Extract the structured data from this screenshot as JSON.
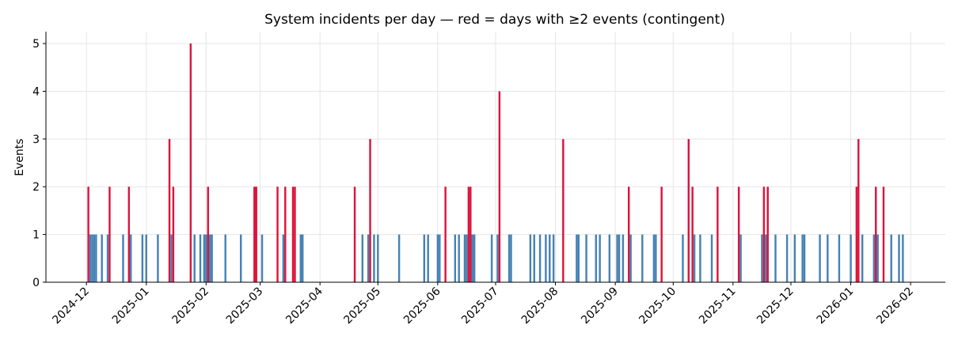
{
  "chart_data": {
    "type": "bar",
    "title": "System incidents per day — red = days with ≥2 events (contingent)",
    "xlabel": "",
    "ylabel": "Events",
    "xlim": [
      "2024-11-10",
      "2026-02-19"
    ],
    "ylim": [
      0,
      5.25
    ],
    "yticks": [
      0,
      1,
      2,
      3,
      4,
      5
    ],
    "xticks": [
      "2024-12",
      "2025-01",
      "2025-02",
      "2025-03",
      "2025-04",
      "2025-05",
      "2025-06",
      "2025-07",
      "2025-08",
      "2025-09",
      "2025-10",
      "2025-11",
      "2025-12",
      "2026-01",
      "2026-02"
    ],
    "grid": true,
    "colors": {
      "normal": "#4682b4",
      "contingent": "#dc143c"
    },
    "threshold": 2,
    "points": [
      [
        "2024-12-02",
        2
      ],
      [
        "2024-12-03",
        1
      ],
      [
        "2024-12-04",
        1
      ],
      [
        "2024-12-05",
        1
      ],
      [
        "2024-12-06",
        1
      ],
      [
        "2024-12-09",
        1
      ],
      [
        "2024-12-12",
        1
      ],
      [
        "2024-12-13",
        2
      ],
      [
        "2024-12-20",
        1
      ],
      [
        "2024-12-23",
        2
      ],
      [
        "2024-12-24",
        1
      ],
      [
        "2024-12-30",
        1
      ],
      [
        "2025-01-01",
        1
      ],
      [
        "2025-01-07",
        1
      ],
      [
        "2025-01-13",
        3
      ],
      [
        "2025-01-14",
        1
      ],
      [
        "2025-01-15",
        2
      ],
      [
        "2025-01-24",
        5
      ],
      [
        "2025-01-26",
        1
      ],
      [
        "2025-01-29",
        1
      ],
      [
        "2025-01-31",
        1
      ],
      [
        "2025-02-01",
        1
      ],
      [
        "2025-02-02",
        2
      ],
      [
        "2025-02-03",
        1
      ],
      [
        "2025-02-04",
        1
      ],
      [
        "2025-02-11",
        1
      ],
      [
        "2025-02-19",
        1
      ],
      [
        "2025-02-26",
        2
      ],
      [
        "2025-02-27",
        2
      ],
      [
        "2025-03-02",
        1
      ],
      [
        "2025-03-10",
        2
      ],
      [
        "2025-03-13",
        1
      ],
      [
        "2025-03-14",
        2
      ],
      [
        "2025-03-18",
        2
      ],
      [
        "2025-03-19",
        2
      ],
      [
        "2025-03-22",
        1
      ],
      [
        "2025-03-23",
        1
      ],
      [
        "2025-04-19",
        2
      ],
      [
        "2025-04-23",
        1
      ],
      [
        "2025-04-26",
        1
      ],
      [
        "2025-04-27",
        3
      ],
      [
        "2025-04-29",
        1
      ],
      [
        "2025-05-01",
        1
      ],
      [
        "2025-05-12",
        1
      ],
      [
        "2025-05-25",
        1
      ],
      [
        "2025-05-27",
        1
      ],
      [
        "2025-06-01",
        1
      ],
      [
        "2025-06-02",
        1
      ],
      [
        "2025-06-05",
        2
      ],
      [
        "2025-06-10",
        1
      ],
      [
        "2025-06-12",
        1
      ],
      [
        "2025-06-15",
        1
      ],
      [
        "2025-06-16",
        1
      ],
      [
        "2025-06-17",
        2
      ],
      [
        "2025-06-18",
        2
      ],
      [
        "2025-06-19",
        1
      ],
      [
        "2025-06-20",
        1
      ],
      [
        "2025-06-29",
        1
      ],
      [
        "2025-07-02",
        1
      ],
      [
        "2025-07-03",
        4
      ],
      [
        "2025-07-08",
        1
      ],
      [
        "2025-07-09",
        1
      ],
      [
        "2025-07-19",
        1
      ],
      [
        "2025-07-21",
        1
      ],
      [
        "2025-07-24",
        1
      ],
      [
        "2025-07-27",
        1
      ],
      [
        "2025-07-29",
        1
      ],
      [
        "2025-07-31",
        1
      ],
      [
        "2025-08-05",
        3
      ],
      [
        "2025-08-12",
        1
      ],
      [
        "2025-08-13",
        1
      ],
      [
        "2025-08-17",
        1
      ],
      [
        "2025-08-22",
        1
      ],
      [
        "2025-08-24",
        1
      ],
      [
        "2025-08-29",
        1
      ],
      [
        "2025-09-02",
        1
      ],
      [
        "2025-09-03",
        1
      ],
      [
        "2025-09-05",
        1
      ],
      [
        "2025-09-08",
        2
      ],
      [
        "2025-09-09",
        1
      ],
      [
        "2025-09-15",
        1
      ],
      [
        "2025-09-21",
        1
      ],
      [
        "2025-09-22",
        1
      ],
      [
        "2025-09-25",
        2
      ],
      [
        "2025-10-06",
        1
      ],
      [
        "2025-10-09",
        3
      ],
      [
        "2025-10-11",
        2
      ],
      [
        "2025-10-12",
        1
      ],
      [
        "2025-10-15",
        1
      ],
      [
        "2025-10-21",
        1
      ],
      [
        "2025-10-24",
        2
      ],
      [
        "2025-11-04",
        2
      ],
      [
        "2025-11-05",
        1
      ],
      [
        "2025-11-16",
        1
      ],
      [
        "2025-11-17",
        2
      ],
      [
        "2025-11-18",
        1
      ],
      [
        "2025-11-19",
        2
      ],
      [
        "2025-11-23",
        1
      ],
      [
        "2025-11-29",
        1
      ],
      [
        "2025-12-03",
        1
      ],
      [
        "2025-12-07",
        1
      ],
      [
        "2025-12-08",
        1
      ],
      [
        "2025-12-16",
        1
      ],
      [
        "2025-12-20",
        1
      ],
      [
        "2025-12-26",
        1
      ],
      [
        "2026-01-01",
        1
      ],
      [
        "2026-01-04",
        2
      ],
      [
        "2026-01-05",
        3
      ],
      [
        "2026-01-07",
        1
      ],
      [
        "2026-01-13",
        1
      ],
      [
        "2026-01-14",
        2
      ],
      [
        "2026-01-15",
        1
      ],
      [
        "2026-01-18",
        2
      ],
      [
        "2026-01-22",
        1
      ],
      [
        "2026-01-26",
        1
      ],
      [
        "2026-01-28",
        1
      ]
    ]
  }
}
